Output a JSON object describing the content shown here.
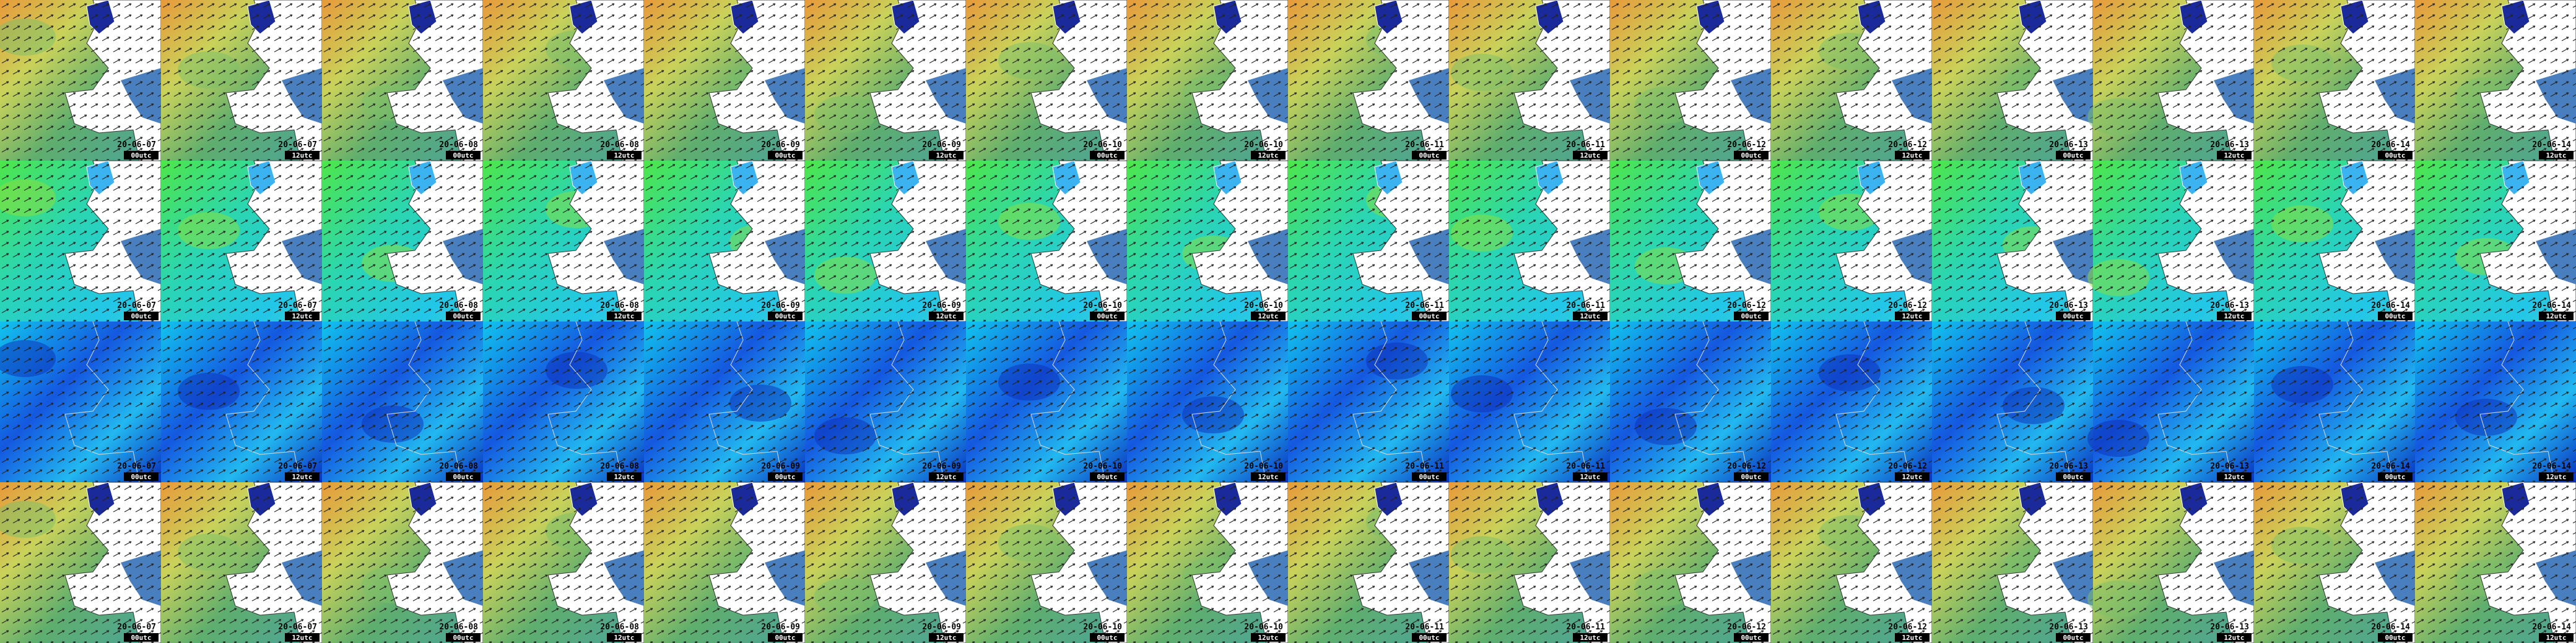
{
  "frames": [
    {
      "date": "20-06-07",
      "time": "00utc"
    },
    {
      "date": "20-06-07",
      "time": "12utc"
    },
    {
      "date": "20-06-08",
      "time": "00utc"
    },
    {
      "date": "20-06-08",
      "time": "12utc"
    },
    {
      "date": "20-06-09",
      "time": "00utc"
    },
    {
      "date": "20-06-09",
      "time": "12utc"
    },
    {
      "date": "20-06-10",
      "time": "00utc"
    },
    {
      "date": "20-06-10",
      "time": "12utc"
    },
    {
      "date": "20-06-11",
      "time": "00utc"
    },
    {
      "date": "20-06-11",
      "time": "12utc"
    },
    {
      "date": "20-06-12",
      "time": "00utc"
    },
    {
      "date": "20-06-12",
      "time": "12utc"
    },
    {
      "date": "20-06-13",
      "time": "00utc"
    },
    {
      "date": "20-06-13",
      "time": "12utc"
    },
    {
      "date": "20-06-14",
      "time": "00utc"
    },
    {
      "date": "20-06-14",
      "time": "12utc"
    }
  ]
}
